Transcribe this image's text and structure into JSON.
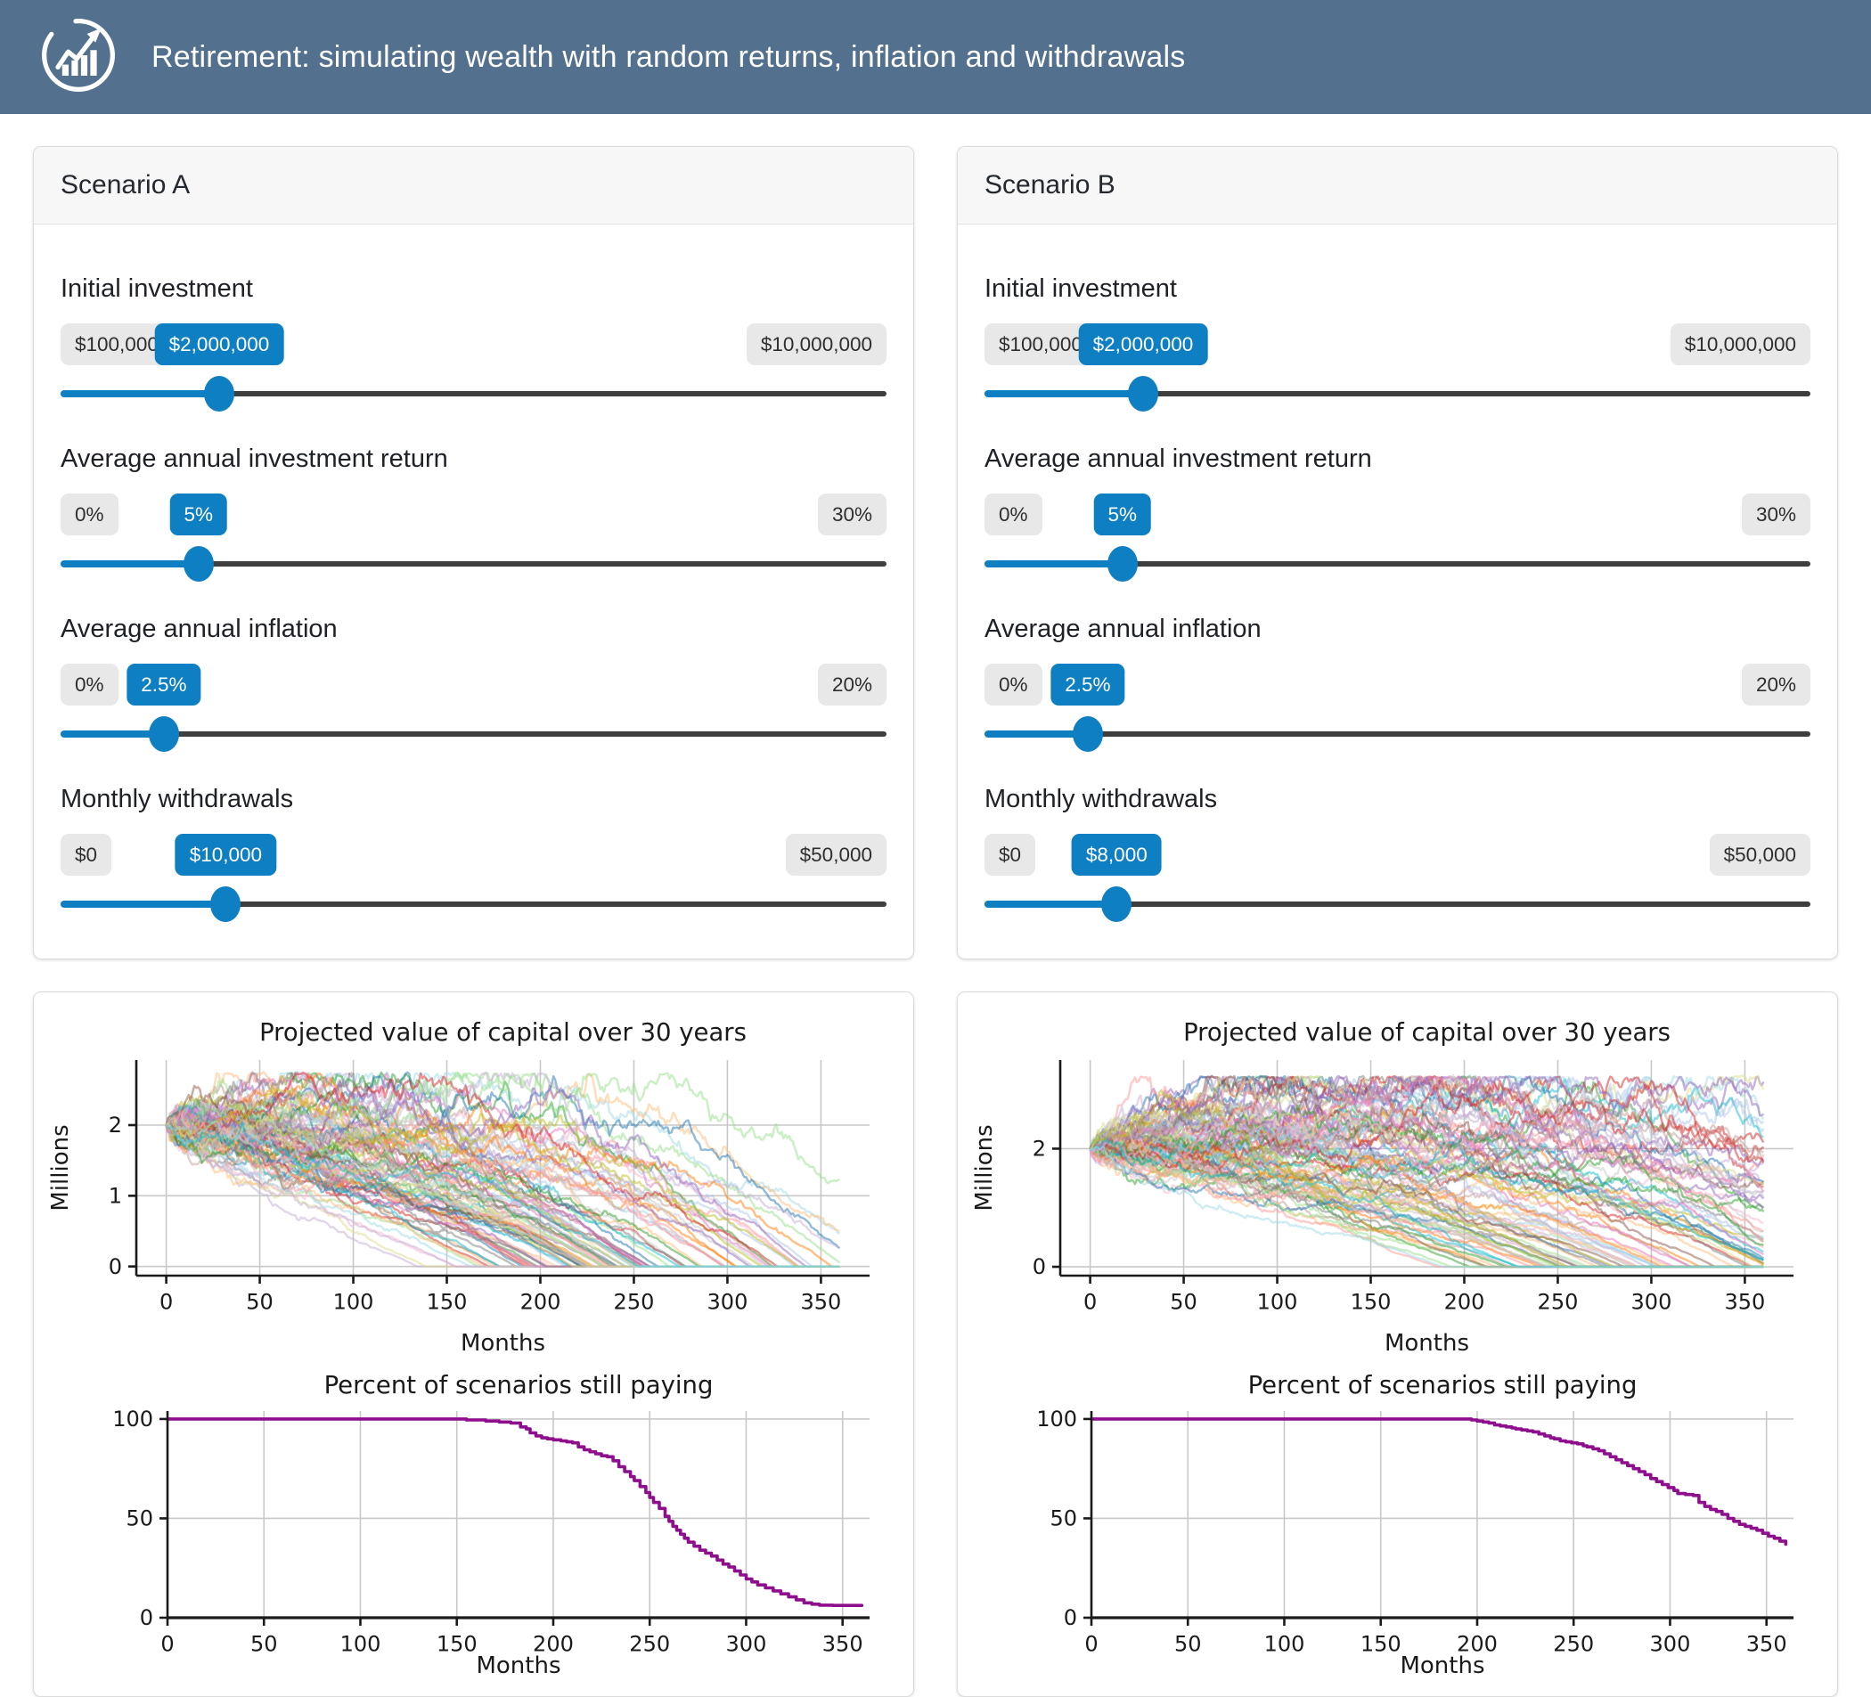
{
  "header": {
    "title": "Retirement: simulating wealth with random returns, inflation and withdrawals",
    "icon": "growth-chart-icon"
  },
  "colors": {
    "header_bg": "#53718f",
    "accent_blue": "#0f7fc3",
    "slider_track": "#3e3e3e",
    "badge_bg": "#e8e8e8",
    "grid": "#c8c8c8",
    "axis": "#1a1a1a",
    "percent_line": "#8e0e8e"
  },
  "palette": [
    "#1f77b4",
    "#aec7e8",
    "#ff7f0e",
    "#ffbb78",
    "#2ca02c",
    "#98df8a",
    "#d62728",
    "#ff9896",
    "#9467bd",
    "#c5b0d5",
    "#8c564b",
    "#c49c94",
    "#e377c2",
    "#f7b6d2",
    "#7f7f7f",
    "#c7c7c7",
    "#bcbd22",
    "#dbdb8d",
    "#17becf",
    "#9edae5"
  ],
  "scenarios": [
    {
      "title": "Scenario A",
      "controls": [
        {
          "id": "initial-investment",
          "label": "Initial investment",
          "min": "$100,000",
          "value": "$2,000,000",
          "max": "$10,000,000",
          "fraction": 0.192
        },
        {
          "id": "annual-return",
          "label": "Average annual investment return",
          "min": "0%",
          "value": "5%",
          "max": "30%",
          "fraction": 0.167
        },
        {
          "id": "annual-inflation",
          "label": "Average annual inflation",
          "min": "0%",
          "value": "2.5%",
          "max": "20%",
          "fraction": 0.125
        },
        {
          "id": "monthly-withdrawals",
          "label": "Monthly withdrawals",
          "min": "$0",
          "value": "$10,000",
          "max": "$50,000",
          "fraction": 0.2
        }
      ]
    },
    {
      "title": "Scenario B",
      "controls": [
        {
          "id": "initial-investment",
          "label": "Initial investment",
          "min": "$100,000",
          "value": "$2,000,000",
          "max": "$10,000,000",
          "fraction": 0.192
        },
        {
          "id": "annual-return",
          "label": "Average annual investment return",
          "min": "0%",
          "value": "5%",
          "max": "30%",
          "fraction": 0.167
        },
        {
          "id": "annual-inflation",
          "label": "Average annual inflation",
          "min": "0%",
          "value": "2.5%",
          "max": "20%",
          "fraction": 0.125
        },
        {
          "id": "monthly-withdrawals",
          "label": "Monthly withdrawals",
          "min": "$0",
          "value": "$8,000",
          "max": "$50,000",
          "fraction": 0.16
        }
      ]
    }
  ],
  "chart_data": [
    {
      "scenario": "A",
      "type": "line",
      "variant": "simulation-paths",
      "title": "Projected value of capital over 30 years",
      "xlabel": "Months",
      "ylabel": "Millions",
      "xlim": [
        -16,
        376
      ],
      "ylim": [
        -0.13,
        2.92
      ],
      "xticks": [
        0,
        50,
        100,
        150,
        200,
        250,
        300,
        350
      ],
      "yticks": [
        0,
        1,
        2
      ],
      "grid": true,
      "line_alpha": 0.5,
      "line_width": 2.4,
      "simulation": {
        "n_paths": 100,
        "months": 360,
        "start_millions": 2.0,
        "annual_return_pct": 5,
        "annual_inflation_pct": 2.5,
        "monthly_withdrawal_usd": 10000,
        "annual_volatility_pct": 9,
        "soft_cap_millions": 2.72,
        "seed": 11
      }
    },
    {
      "scenario": "A",
      "type": "line",
      "variant": "percent-paying",
      "title": "Percent of scenarios still paying",
      "xlabel": "Months",
      "xlim": [
        0,
        364
      ],
      "ylim": [
        0,
        104
      ],
      "xticks": [
        0,
        50,
        100,
        150,
        200,
        250,
        300,
        350
      ],
      "yticks": [
        0,
        50,
        100
      ],
      "grid": true,
      "line_width": 3.6,
      "color": "#8e0e8e",
      "points": [
        [
          0,
          100
        ],
        [
          150,
          100
        ],
        [
          155,
          99.5
        ],
        [
          165,
          99
        ],
        [
          172,
          98.5
        ],
        [
          178,
          98
        ],
        [
          183,
          96
        ],
        [
          186,
          95
        ],
        [
          188,
          93
        ],
        [
          191,
          91.5
        ],
        [
          194,
          90.5
        ],
        [
          197,
          90
        ],
        [
          200,
          89.5
        ],
        [
          204,
          89
        ],
        [
          207,
          88.5
        ],
        [
          210,
          88
        ],
        [
          213,
          86
        ],
        [
          216,
          84.5
        ],
        [
          219,
          83.5
        ],
        [
          222,
          82.5
        ],
        [
          225,
          81.5
        ],
        [
          228,
          81
        ],
        [
          231,
          79
        ],
        [
          234,
          76
        ],
        [
          237,
          73.5
        ],
        [
          240,
          71
        ],
        [
          242,
          69
        ],
        [
          245,
          66
        ],
        [
          248,
          63
        ],
        [
          250,
          60.5
        ],
        [
          252,
          58
        ],
        [
          255,
          55
        ],
        [
          258,
          51
        ],
        [
          260,
          48.5
        ],
        [
          262,
          46
        ],
        [
          264,
          44
        ],
        [
          266,
          42
        ],
        [
          268,
          40
        ],
        [
          270,
          38
        ],
        [
          273,
          36
        ],
        [
          276,
          34
        ],
        [
          279,
          32.5
        ],
        [
          282,
          31
        ],
        [
          285,
          29
        ],
        [
          288,
          27
        ],
        [
          291,
          25.5
        ],
        [
          294,
          23.5
        ],
        [
          297,
          21.5
        ],
        [
          300,
          19.5
        ],
        [
          303,
          18
        ],
        [
          306,
          16.5
        ],
        [
          310,
          15
        ],
        [
          314,
          13.5
        ],
        [
          318,
          12
        ],
        [
          322,
          10.5
        ],
        [
          326,
          9
        ],
        [
          330,
          7.5
        ],
        [
          334,
          6.8
        ],
        [
          338,
          6.3
        ],
        [
          345,
          6.2
        ],
        [
          352,
          6.2
        ],
        [
          360,
          6.2
        ]
      ]
    },
    {
      "scenario": "B",
      "type": "line",
      "variant": "simulation-paths",
      "title": "Projected value of capital over 30 years",
      "xlabel": "Months",
      "ylabel": "Millions",
      "xlim": [
        -16,
        376
      ],
      "ylim": [
        -0.15,
        3.5
      ],
      "xticks": [
        0,
        50,
        100,
        150,
        200,
        250,
        300,
        350
      ],
      "yticks": [
        0,
        2
      ],
      "grid": true,
      "line_alpha": 0.5,
      "line_width": 2.4,
      "simulation": {
        "n_paths": 100,
        "months": 360,
        "start_millions": 2.0,
        "annual_return_pct": 5,
        "annual_inflation_pct": 2.5,
        "monthly_withdrawal_usd": 8000,
        "annual_volatility_pct": 9,
        "soft_cap_millions": 3.2,
        "seed": 47
      }
    },
    {
      "scenario": "B",
      "type": "line",
      "variant": "percent-paying",
      "title": "Percent of scenarios still paying",
      "xlabel": "Months",
      "xlim": [
        0,
        364
      ],
      "ylim": [
        0,
        104
      ],
      "xticks": [
        0,
        50,
        100,
        150,
        200,
        250,
        300,
        350
      ],
      "yticks": [
        0,
        50,
        100
      ],
      "grid": true,
      "line_width": 3.6,
      "color": "#8e0e8e",
      "points": [
        [
          0,
          100
        ],
        [
          193,
          100
        ],
        [
          197,
          99.5
        ],
        [
          200,
          99
        ],
        [
          203,
          98.5
        ],
        [
          206,
          98
        ],
        [
          209,
          97
        ],
        [
          212,
          96.5
        ],
        [
          215,
          96
        ],
        [
          218,
          95.5
        ],
        [
          220,
          95
        ],
        [
          223,
          94.5
        ],
        [
          226,
          94
        ],
        [
          229,
          93.5
        ],
        [
          232,
          92.5
        ],
        [
          235,
          91.5
        ],
        [
          238,
          90.5
        ],
        [
          240,
          90
        ],
        [
          243,
          89
        ],
        [
          246,
          88.5
        ],
        [
          249,
          88
        ],
        [
          252,
          87.5
        ],
        [
          255,
          86.5
        ],
        [
          257,
          86
        ],
        [
          260,
          85
        ],
        [
          263,
          84
        ],
        [
          266,
          82.5
        ],
        [
          269,
          81
        ],
        [
          272,
          79.5
        ],
        [
          275,
          78
        ],
        [
          278,
          76.5
        ],
        [
          281,
          75
        ],
        [
          284,
          73.5
        ],
        [
          287,
          72
        ],
        [
          290,
          70
        ],
        [
          293,
          68.5
        ],
        [
          296,
          67
        ],
        [
          299,
          65.5
        ],
        [
          302,
          64
        ],
        [
          304,
          62.5
        ],
        [
          308,
          62
        ],
        [
          312,
          61.5
        ],
        [
          315,
          58
        ],
        [
          318,
          56
        ],
        [
          321,
          54.5
        ],
        [
          324,
          53.5
        ],
        [
          327,
          52
        ],
        [
          330,
          50
        ],
        [
          333,
          48.5
        ],
        [
          336,
          47
        ],
        [
          339,
          46
        ],
        [
          342,
          45
        ],
        [
          345,
          44
        ],
        [
          348,
          42.5
        ],
        [
          351,
          41
        ],
        [
          354,
          40
        ],
        [
          357,
          38.5
        ],
        [
          360,
          37
        ]
      ]
    }
  ]
}
